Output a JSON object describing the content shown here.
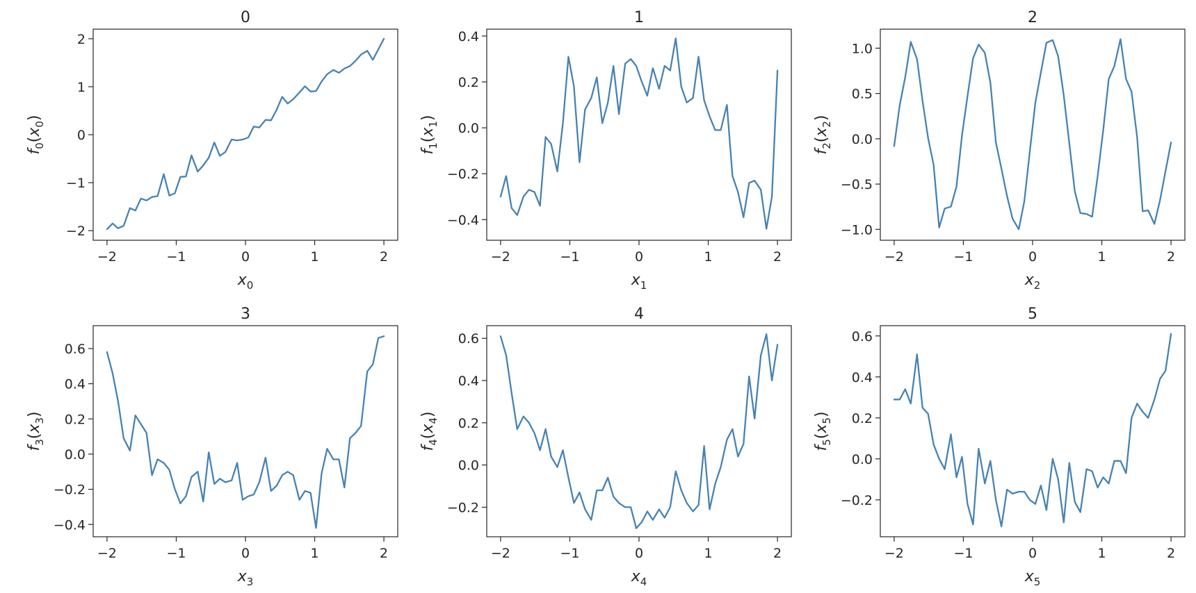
{
  "figure": {
    "colors": {
      "line": "#4682b4",
      "axes": "#262626",
      "background": "#ffffff"
    }
  },
  "chart_data": [
    {
      "type": "line",
      "title": "0",
      "xlabel": {
        "base": "x",
        "sub": "0"
      },
      "ylabel": {
        "base": "f",
        "sub": "0",
        "arg": "x",
        "argsub": "0"
      },
      "xlim": [
        -2.2,
        2.2
      ],
      "ylim": [
        -2.2,
        2.2
      ],
      "xticks": [
        -2,
        -1,
        0,
        1,
        2
      ],
      "yticks": [
        -2,
        -1,
        0,
        1,
        2
      ],
      "xtick_labels": [
        "−2",
        "−1",
        "0",
        "1",
        "2"
      ],
      "ytick_labels": [
        "−2",
        "−1",
        "0",
        "1",
        "2"
      ],
      "grid": false,
      "series": [
        {
          "x": [
            -2.0,
            -1.92,
            -1.84,
            -1.76,
            -1.67,
            -1.59,
            -1.51,
            -1.43,
            -1.35,
            -1.27,
            -1.18,
            -1.1,
            -1.02,
            -0.94,
            -0.86,
            -0.78,
            -0.69,
            -0.61,
            -0.53,
            -0.45,
            -0.37,
            -0.29,
            -0.2,
            -0.12,
            -0.04,
            0.04,
            0.12,
            0.2,
            0.29,
            0.37,
            0.45,
            0.53,
            0.61,
            0.69,
            0.78,
            0.86,
            0.94,
            1.02,
            1.1,
            1.18,
            1.27,
            1.35,
            1.43,
            1.51,
            1.59,
            1.67,
            1.76,
            1.84,
            1.92,
            2.0
          ],
          "y": [
            -1.97,
            -1.85,
            -1.95,
            -1.9,
            -1.53,
            -1.58,
            -1.33,
            -1.37,
            -1.3,
            -1.28,
            -0.82,
            -1.27,
            -1.22,
            -0.88,
            -0.87,
            -0.43,
            -0.77,
            -0.64,
            -0.48,
            -0.16,
            -0.44,
            -0.36,
            -0.1,
            -0.12,
            -0.1,
            -0.06,
            0.17,
            0.15,
            0.31,
            0.3,
            0.52,
            0.79,
            0.65,
            0.74,
            0.88,
            1.01,
            0.9,
            0.91,
            1.11,
            1.26,
            1.35,
            1.29,
            1.38,
            1.43,
            1.54,
            1.67,
            1.75,
            1.56,
            1.78,
            2.0
          ]
        }
      ]
    },
    {
      "type": "line",
      "title": "1",
      "xlabel": {
        "base": "x",
        "sub": "1"
      },
      "ylabel": {
        "base": "f",
        "sub": "1",
        "arg": "x",
        "argsub": "1"
      },
      "xlim": [
        -2.2,
        2.2
      ],
      "ylim": [
        -0.49,
        0.43
      ],
      "xticks": [
        -2,
        -1,
        0,
        1,
        2
      ],
      "yticks": [
        -0.4,
        -0.2,
        0.0,
        0.2,
        0.4
      ],
      "xtick_labels": [
        "−2",
        "−1",
        "0",
        "1",
        "2"
      ],
      "ytick_labels": [
        "−0.4",
        "−0.2",
        "0.0",
        "0.2",
        "0.4"
      ],
      "grid": false,
      "series": [
        {
          "x": [
            -2.0,
            -1.92,
            -1.84,
            -1.76,
            -1.67,
            -1.59,
            -1.51,
            -1.43,
            -1.35,
            -1.27,
            -1.18,
            -1.1,
            -1.02,
            -0.94,
            -0.86,
            -0.78,
            -0.69,
            -0.61,
            -0.53,
            -0.45,
            -0.37,
            -0.29,
            -0.2,
            -0.12,
            -0.04,
            0.04,
            0.12,
            0.2,
            0.29,
            0.37,
            0.45,
            0.53,
            0.61,
            0.69,
            0.78,
            0.86,
            0.94,
            1.02,
            1.1,
            1.18,
            1.27,
            1.35,
            1.43,
            1.51,
            1.59,
            1.67,
            1.76,
            1.84,
            1.92,
            2.0
          ],
          "y": [
            -0.3,
            -0.21,
            -0.35,
            -0.38,
            -0.3,
            -0.27,
            -0.28,
            -0.34,
            -0.04,
            -0.07,
            -0.19,
            0.02,
            0.31,
            0.18,
            -0.15,
            0.08,
            0.13,
            0.22,
            0.02,
            0.11,
            0.27,
            0.06,
            0.28,
            0.3,
            0.27,
            0.2,
            0.14,
            0.26,
            0.17,
            0.27,
            0.25,
            0.39,
            0.18,
            0.11,
            0.13,
            0.31,
            0.12,
            0.05,
            -0.01,
            -0.01,
            0.1,
            -0.21,
            -0.28,
            -0.39,
            -0.24,
            -0.23,
            -0.27,
            -0.44,
            -0.3,
            0.25
          ]
        }
      ]
    },
    {
      "type": "line",
      "title": "2",
      "xlabel": {
        "base": "x",
        "sub": "2"
      },
      "ylabel": {
        "base": "f",
        "sub": "2",
        "arg": "x",
        "argsub": "2"
      },
      "xlim": [
        -2.2,
        2.2
      ],
      "ylim": [
        -1.12,
        1.21
      ],
      "xticks": [
        -2,
        -1,
        0,
        1,
        2
      ],
      "yticks": [
        -1.0,
        -0.5,
        0.0,
        0.5,
        1.0
      ],
      "xtick_labels": [
        "−2",
        "−1",
        "0",
        "1",
        "2"
      ],
      "ytick_labels": [
        "−1.0",
        "−0.5",
        "0.0",
        "0.5",
        "1.0"
      ],
      "grid": false,
      "series": [
        {
          "x": [
            -2.0,
            -1.92,
            -1.84,
            -1.76,
            -1.67,
            -1.59,
            -1.51,
            -1.43,
            -1.35,
            -1.27,
            -1.18,
            -1.1,
            -1.02,
            -0.94,
            -0.86,
            -0.78,
            -0.69,
            -0.61,
            -0.53,
            -0.45,
            -0.37,
            -0.29,
            -0.2,
            -0.12,
            -0.04,
            0.04,
            0.12,
            0.2,
            0.29,
            0.37,
            0.45,
            0.53,
            0.61,
            0.69,
            0.78,
            0.86,
            0.94,
            1.02,
            1.1,
            1.18,
            1.27,
            1.35,
            1.43,
            1.51,
            1.59,
            1.67,
            1.76,
            1.84,
            1.92,
            2.0
          ],
          "y": [
            -0.08,
            0.37,
            0.68,
            1.07,
            0.88,
            0.42,
            0.01,
            -0.29,
            -0.98,
            -0.77,
            -0.75,
            -0.53,
            0.04,
            0.47,
            0.89,
            1.04,
            0.95,
            0.62,
            -0.04,
            -0.33,
            -0.63,
            -0.88,
            -1.0,
            -0.69,
            -0.14,
            0.4,
            0.73,
            1.06,
            1.09,
            0.91,
            0.48,
            -0.05,
            -0.58,
            -0.82,
            -0.83,
            -0.86,
            -0.41,
            0.09,
            0.66,
            0.8,
            1.1,
            0.66,
            0.52,
            0.02,
            -0.8,
            -0.79,
            -0.94,
            -0.68,
            -0.36,
            -0.04
          ]
        }
      ]
    },
    {
      "type": "line",
      "title": "3",
      "xlabel": {
        "base": "x",
        "sub": "3"
      },
      "ylabel": {
        "base": "f",
        "sub": "3",
        "arg": "x",
        "argsub": "3"
      },
      "xlim": [
        -2.2,
        2.2
      ],
      "ylim": [
        -0.47,
        0.73
      ],
      "xticks": [
        -2,
        -1,
        0,
        1,
        2
      ],
      "yticks": [
        -0.4,
        -0.2,
        0.0,
        0.2,
        0.4,
        0.6
      ],
      "xtick_labels": [
        "−2",
        "−1",
        "0",
        "1",
        "2"
      ],
      "ytick_labels": [
        "−0.4",
        "−0.2",
        "0.0",
        "0.2",
        "0.4",
        "0.6"
      ],
      "grid": false,
      "series": [
        {
          "x": [
            -2.0,
            -1.92,
            -1.84,
            -1.76,
            -1.67,
            -1.59,
            -1.51,
            -1.43,
            -1.35,
            -1.27,
            -1.18,
            -1.1,
            -1.02,
            -0.94,
            -0.86,
            -0.78,
            -0.69,
            -0.61,
            -0.53,
            -0.45,
            -0.37,
            -0.29,
            -0.2,
            -0.12,
            -0.04,
            0.04,
            0.12,
            0.2,
            0.29,
            0.37,
            0.45,
            0.53,
            0.61,
            0.69,
            0.78,
            0.86,
            0.94,
            1.02,
            1.1,
            1.18,
            1.27,
            1.35,
            1.43,
            1.51,
            1.59,
            1.67,
            1.76,
            1.84,
            1.92,
            2.0
          ],
          "y": [
            0.58,
            0.46,
            0.3,
            0.09,
            0.02,
            0.22,
            0.17,
            0.12,
            -0.12,
            -0.03,
            -0.05,
            -0.09,
            -0.2,
            -0.28,
            -0.24,
            -0.13,
            -0.1,
            -0.27,
            0.01,
            -0.17,
            -0.14,
            -0.16,
            -0.15,
            -0.05,
            -0.26,
            -0.24,
            -0.23,
            -0.16,
            -0.02,
            -0.21,
            -0.18,
            -0.12,
            -0.1,
            -0.12,
            -0.26,
            -0.21,
            -0.22,
            -0.42,
            -0.11,
            0.03,
            -0.03,
            -0.03,
            -0.19,
            0.09,
            0.12,
            0.16,
            0.47,
            0.51,
            0.66,
            0.67
          ]
        }
      ]
    },
    {
      "type": "line",
      "title": "4",
      "xlabel": {
        "base": "x",
        "sub": "4"
      },
      "ylabel": {
        "base": "f",
        "sub": "4",
        "arg": "x",
        "argsub": "4"
      },
      "xlim": [
        -2.2,
        2.2
      ],
      "ylim": [
        -0.34,
        0.66
      ],
      "xticks": [
        -2,
        -1,
        0,
        1,
        2
      ],
      "yticks": [
        -0.2,
        0.0,
        0.2,
        0.4,
        0.6
      ],
      "xtick_labels": [
        "−2",
        "−1",
        "0",
        "1",
        "2"
      ],
      "ytick_labels": [
        "−0.2",
        "0.0",
        "0.2",
        "0.4",
        "0.6"
      ],
      "grid": false,
      "series": [
        {
          "x": [
            -2.0,
            -1.92,
            -1.84,
            -1.76,
            -1.67,
            -1.59,
            -1.51,
            -1.43,
            -1.35,
            -1.27,
            -1.18,
            -1.1,
            -1.02,
            -0.94,
            -0.86,
            -0.78,
            -0.69,
            -0.61,
            -0.53,
            -0.45,
            -0.37,
            -0.29,
            -0.2,
            -0.12,
            -0.04,
            0.04,
            0.12,
            0.2,
            0.29,
            0.37,
            0.45,
            0.53,
            0.61,
            0.69,
            0.78,
            0.86,
            0.94,
            1.02,
            1.1,
            1.18,
            1.27,
            1.35,
            1.43,
            1.51,
            1.59,
            1.67,
            1.76,
            1.84,
            1.92,
            2.0
          ],
          "y": [
            0.61,
            0.52,
            0.34,
            0.17,
            0.23,
            0.2,
            0.15,
            0.07,
            0.17,
            0.04,
            -0.01,
            0.07,
            -0.06,
            -0.18,
            -0.13,
            -0.21,
            -0.26,
            -0.12,
            -0.12,
            -0.06,
            -0.15,
            -0.18,
            -0.2,
            -0.2,
            -0.3,
            -0.27,
            -0.22,
            -0.26,
            -0.21,
            -0.25,
            -0.2,
            -0.03,
            -0.12,
            -0.18,
            -0.22,
            -0.19,
            0.09,
            -0.21,
            -0.09,
            -0.01,
            0.12,
            0.17,
            0.04,
            0.1,
            0.42,
            0.22,
            0.52,
            0.62,
            0.4,
            0.57
          ]
        }
      ]
    },
    {
      "type": "line",
      "title": "5",
      "xlabel": {
        "base": "x",
        "sub": "5"
      },
      "ylabel": {
        "base": "f",
        "sub": "5",
        "arg": "x",
        "argsub": "5"
      },
      "xlim": [
        -2.2,
        2.2
      ],
      "ylim": [
        -0.38,
        0.65
      ],
      "xticks": [
        -2,
        -1,
        0,
        1,
        2
      ],
      "yticks": [
        -0.2,
        0.0,
        0.2,
        0.4,
        0.6
      ],
      "xtick_labels": [
        "−2",
        "−1",
        "0",
        "1",
        "2"
      ],
      "ytick_labels": [
        "−0.2",
        "0.0",
        "0.2",
        "0.4",
        "0.6"
      ],
      "grid": false,
      "series": [
        {
          "x": [
            -2.0,
            -1.92,
            -1.84,
            -1.76,
            -1.67,
            -1.59,
            -1.51,
            -1.43,
            -1.35,
            -1.27,
            -1.18,
            -1.1,
            -1.02,
            -0.94,
            -0.86,
            -0.78,
            -0.69,
            -0.61,
            -0.53,
            -0.45,
            -0.37,
            -0.29,
            -0.2,
            -0.12,
            -0.04,
            0.04,
            0.12,
            0.2,
            0.29,
            0.37,
            0.45,
            0.53,
            0.61,
            0.69,
            0.78,
            0.86,
            0.94,
            1.02,
            1.1,
            1.18,
            1.27,
            1.35,
            1.43,
            1.51,
            1.59,
            1.67,
            1.76,
            1.84,
            1.92,
            2.0
          ],
          "y": [
            0.29,
            0.29,
            0.34,
            0.27,
            0.51,
            0.25,
            0.22,
            0.07,
            0.0,
            -0.05,
            0.12,
            -0.09,
            0.01,
            -0.22,
            -0.32,
            0.05,
            -0.12,
            -0.01,
            -0.2,
            -0.33,
            -0.15,
            -0.17,
            -0.16,
            -0.16,
            -0.2,
            -0.22,
            -0.13,
            -0.25,
            0.0,
            -0.1,
            -0.31,
            -0.02,
            -0.21,
            -0.26,
            -0.05,
            -0.06,
            -0.14,
            -0.09,
            -0.12,
            -0.01,
            -0.01,
            -0.07,
            0.2,
            0.27,
            0.23,
            0.2,
            0.29,
            0.39,
            0.43,
            0.61
          ]
        }
      ]
    }
  ]
}
